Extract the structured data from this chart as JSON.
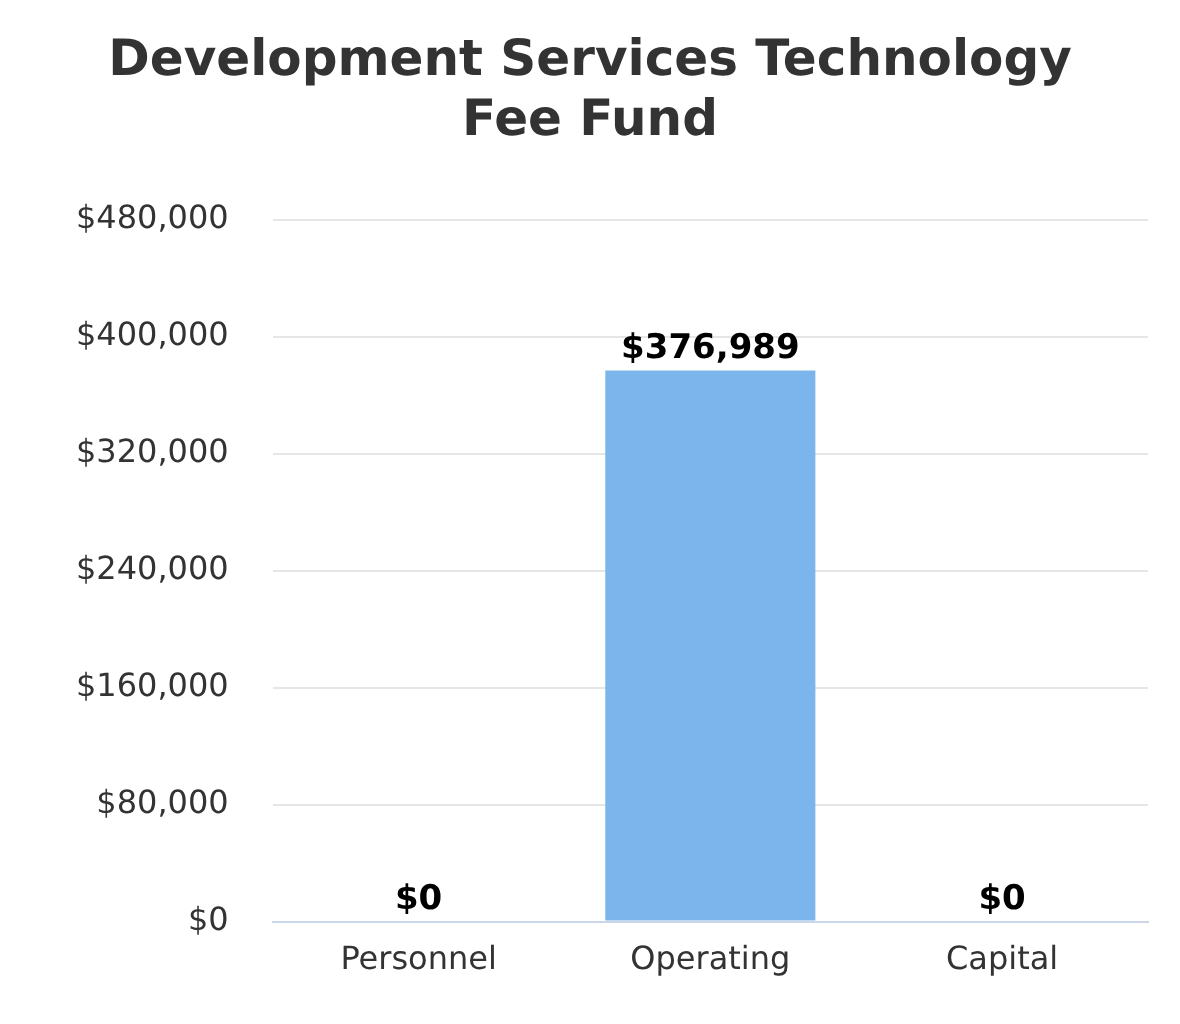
{
  "chart_data": {
    "type": "bar",
    "title": "Development Services Technology Fee Fund",
    "categories": [
      "Personnel",
      "Operating",
      "Capital"
    ],
    "values": [
      0,
      376989,
      0
    ],
    "value_labels": [
      "$0",
      "$376,989",
      "$0"
    ],
    "color": "#7cb5ec",
    "ylim": [
      0,
      480000
    ],
    "yticks": [
      {
        "value": 0,
        "label": "$0"
      },
      {
        "value": 80000,
        "label": "$80,000"
      },
      {
        "value": 160000,
        "label": "$160,000"
      },
      {
        "value": 240000,
        "label": "$240,000"
      },
      {
        "value": 320000,
        "label": "$320,000"
      },
      {
        "value": 400000,
        "label": "$400,000"
      },
      {
        "value": 480000,
        "label": "$480,000"
      }
    ],
    "grid": "y"
  }
}
